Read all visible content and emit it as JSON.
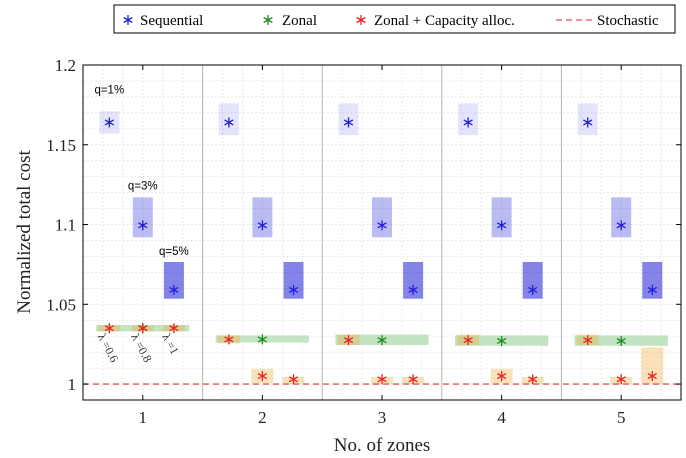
{
  "chart_data": {
    "type": "scatter",
    "xlabel": "No. of zones",
    "ylabel": "Normalized total cost",
    "x_ticks": [
      "1",
      "2",
      "3",
      "4",
      "5"
    ],
    "y_ticks": [
      "1",
      "1.05",
      "1.1",
      "1.15",
      "1.2"
    ],
    "ylim": [
      0.99,
      1.2
    ],
    "grid": true,
    "legend_position": "top",
    "legend": [
      {
        "name": "Sequential",
        "color": "#1f1fd6",
        "marker": "asterisk"
      },
      {
        "name": "Zonal",
        "color": "#1e8c1e",
        "marker": "asterisk"
      },
      {
        "name": "Zonal + Capacity alloc.",
        "color": "#ee2020",
        "marker": "asterisk"
      },
      {
        "name": "Stochastic",
        "color": "#e85050",
        "marker": "dashed-line"
      }
    ],
    "stochastic_value": 1.0,
    "q_labels": [
      {
        "text": "q=1%",
        "zone": 1,
        "slot": 0,
        "value": 1.182
      },
      {
        "text": "q=3%",
        "zone": 1,
        "slot": 1,
        "value": 1.122
      },
      {
        "text": "q=5%",
        "zone": 1,
        "slot": 2,
        "value": 1.081
      }
    ],
    "lambda_labels": [
      "λ =0.6",
      "λ =0.8",
      "λ =1"
    ],
    "series": [
      {
        "name": "Sequential",
        "color": "#1f1fd6",
        "points": [
          {
            "zone": 1,
            "slot": 0,
            "value": 1.164,
            "low": 1.157,
            "high": 1.171,
            "opacity": 0.12
          },
          {
            "zone": 1,
            "slot": 1,
            "value": 1.0995,
            "low": 1.092,
            "high": 1.117,
            "opacity": 0.3
          },
          {
            "zone": 1,
            "slot": 2,
            "value": 1.059,
            "low": 1.0535,
            "high": 1.0765,
            "opacity": 0.55
          },
          {
            "zone": 2,
            "slot": 0,
            "value": 1.164,
            "low": 1.156,
            "high": 1.176,
            "opacity": 0.12
          },
          {
            "zone": 2,
            "slot": 1,
            "value": 1.0995,
            "low": 1.092,
            "high": 1.117,
            "opacity": 0.3
          },
          {
            "zone": 2,
            "slot": 2,
            "value": 1.059,
            "low": 1.0535,
            "high": 1.0765,
            "opacity": 0.55
          },
          {
            "zone": 3,
            "slot": 0,
            "value": 1.164,
            "low": 1.156,
            "high": 1.176,
            "opacity": 0.12
          },
          {
            "zone": 3,
            "slot": 1,
            "value": 1.0995,
            "low": 1.092,
            "high": 1.117,
            "opacity": 0.3
          },
          {
            "zone": 3,
            "slot": 2,
            "value": 1.059,
            "low": 1.0535,
            "high": 1.0765,
            "opacity": 0.55
          },
          {
            "zone": 4,
            "slot": 0,
            "value": 1.164,
            "low": 1.156,
            "high": 1.176,
            "opacity": 0.12
          },
          {
            "zone": 4,
            "slot": 1,
            "value": 1.0995,
            "low": 1.092,
            "high": 1.117,
            "opacity": 0.3
          },
          {
            "zone": 4,
            "slot": 2,
            "value": 1.059,
            "low": 1.0535,
            "high": 1.0765,
            "opacity": 0.55
          },
          {
            "zone": 5,
            "slot": 0,
            "value": 1.164,
            "low": 1.156,
            "high": 1.176,
            "opacity": 0.12
          },
          {
            "zone": 5,
            "slot": 1,
            "value": 1.0995,
            "low": 1.092,
            "high": 1.117,
            "opacity": 0.3
          },
          {
            "zone": 5,
            "slot": 2,
            "value": 1.059,
            "low": 1.0535,
            "high": 1.0765,
            "opacity": 0.55
          }
        ]
      },
      {
        "name": "Zonal",
        "color": "#1e8c1e",
        "points": [
          {
            "zone": 1,
            "slot": 1,
            "value": 1.035,
            "low": 1.033,
            "high": 1.037
          },
          {
            "zone": 2,
            "slot": 1,
            "value": 1.028,
            "low": 1.026,
            "high": 1.0305
          },
          {
            "zone": 3,
            "slot": 1,
            "value": 1.0275,
            "low": 1.0245,
            "high": 1.031
          },
          {
            "zone": 4,
            "slot": 1,
            "value": 1.027,
            "low": 1.024,
            "high": 1.0305
          },
          {
            "zone": 5,
            "slot": 1,
            "value": 1.027,
            "low": 1.024,
            "high": 1.0305
          }
        ]
      },
      {
        "name": "Zonal + Capacity alloc.",
        "color": "#ee2020",
        "points": [
          {
            "zone": 1,
            "slot": 0,
            "value": 1.035,
            "low": 1.033,
            "high": 1.037
          },
          {
            "zone": 1,
            "slot": 1,
            "value": 1.035,
            "low": 1.033,
            "high": 1.037
          },
          {
            "zone": 1,
            "slot": 2,
            "value": 1.035,
            "low": 1.033,
            "high": 1.037
          },
          {
            "zone": 2,
            "slot": 0,
            "value": 1.028,
            "low": 1.0255,
            "high": 1.0305
          },
          {
            "zone": 2,
            "slot": 1,
            "value": 1.005,
            "low": 1.0005,
            "high": 1.0095
          },
          {
            "zone": 2,
            "slot": 2,
            "value": 1.003,
            "low": 1.0,
            "high": 1.0045
          },
          {
            "zone": 3,
            "slot": 0,
            "value": 1.0275,
            "low": 1.0245,
            "high": 1.031
          },
          {
            "zone": 3,
            "slot": 1,
            "value": 1.003,
            "low": 1.0,
            "high": 1.0045
          },
          {
            "zone": 3,
            "slot": 2,
            "value": 1.003,
            "low": 1.0,
            "high": 1.0045
          },
          {
            "zone": 4,
            "slot": 0,
            "value": 1.0275,
            "low": 1.0245,
            "high": 1.031
          },
          {
            "zone": 4,
            "slot": 1,
            "value": 1.005,
            "low": 1.0005,
            "high": 1.0095
          },
          {
            "zone": 4,
            "slot": 2,
            "value": 1.003,
            "low": 1.0,
            "high": 1.0045
          },
          {
            "zone": 5,
            "slot": 0,
            "value": 1.0275,
            "low": 1.0245,
            "high": 1.031
          },
          {
            "zone": 5,
            "slot": 1,
            "value": 1.003,
            "low": 1.0,
            "high": 1.0045
          },
          {
            "zone": 5,
            "slot": 2,
            "value": 1.005,
            "low": 1.0,
            "high": 1.023
          }
        ]
      }
    ]
  }
}
